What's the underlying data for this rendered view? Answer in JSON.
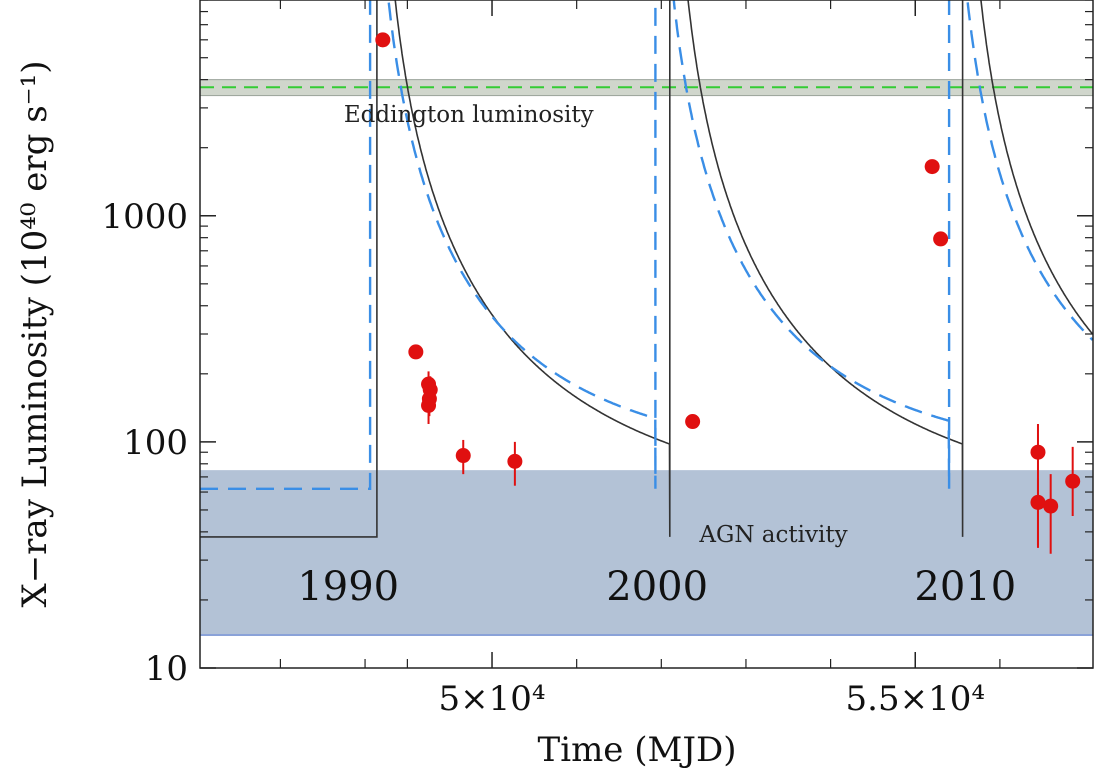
{
  "chart_data": {
    "type": "scatter",
    "xlabel": "Time (MJD)",
    "ylabel": "X−ray Luminosity (10⁴⁰ erg s⁻¹)",
    "x_scale": "linear",
    "y_scale": "log",
    "xlim": [
      46550,
      57100
    ],
    "ylim": [
      10,
      9000
    ],
    "x_major_ticks": [
      {
        "value": 50000,
        "label": "5×10⁴"
      },
      {
        "value": 55000,
        "label": "5.5×10⁴"
      }
    ],
    "x_minor_ticks": [
      47500,
      48500,
      49000,
      51000,
      52000,
      53000,
      54000,
      56000
    ],
    "y_major_ticks": [
      {
        "value": 10,
        "label": "10"
      },
      {
        "value": 100,
        "label": "100"
      },
      {
        "value": 1000,
        "label": "1000"
      }
    ],
    "grid": false,
    "bands": [
      {
        "name": "Eddington luminosity",
        "y_low": 3400,
        "y_high": 4000,
        "line": 3700,
        "label_x": 48250,
        "label_y": 2600
      },
      {
        "name": "AGN activity",
        "y_low": 14,
        "y_high": 75,
        "label_x": 52450,
        "label_y": 36
      }
    ],
    "year_labels": [
      {
        "text": "1990",
        "x": 47700,
        "y": 20
      },
      {
        "text": "2000",
        "x": 51350,
        "y": 20
      },
      {
        "text": "2010",
        "x": 54990,
        "y": 20
      }
    ],
    "points": [
      {
        "x": 48710,
        "y": 6000,
        "err_lo": 0,
        "err_hi": 0
      },
      {
        "x": 49100,
        "y": 250,
        "err_lo": 0,
        "err_hi": 0
      },
      {
        "x": 49250,
        "y": 180,
        "err_lo": 25,
        "err_hi": 25
      },
      {
        "x": 49270,
        "y": 170,
        "err_lo": 25,
        "err_hi": 25
      },
      {
        "x": 49260,
        "y": 155,
        "err_lo": 25,
        "err_hi": 25
      },
      {
        "x": 49250,
        "y": 145,
        "err_lo": 25,
        "err_hi": 25
      },
      {
        "x": 49660,
        "y": 87,
        "err_lo": 15,
        "err_hi": 15
      },
      {
        "x": 50270,
        "y": 82,
        "err_lo": 18,
        "err_hi": 18
      },
      {
        "x": 52370,
        "y": 123,
        "err_lo": 0,
        "err_hi": 0
      },
      {
        "x": 55200,
        "y": 1650,
        "err_lo": 0,
        "err_hi": 0
      },
      {
        "x": 55300,
        "y": 790,
        "err_lo": 0,
        "err_hi": 0
      },
      {
        "x": 56450,
        "y": 90,
        "err_lo": 55,
        "err_hi": 30
      },
      {
        "x": 56450,
        "y": 54,
        "err_lo": 20,
        "err_hi": 15
      },
      {
        "x": 56600,
        "y": 52,
        "err_lo": 20,
        "err_hi": 20
      },
      {
        "x": 56860,
        "y": 67,
        "err_lo": 20,
        "err_hi": 28
      }
    ],
    "series": [
      {
        "style": "solid",
        "color": "#333333",
        "baseline": 38,
        "start": 46550,
        "flares": [
          48640,
          52100,
          55560
        ]
      },
      {
        "style": "dashed",
        "color": "#3a8ee6",
        "baseline": 62,
        "start": 46550,
        "flares": [
          48560,
          51930,
          55400
        ]
      }
    ],
    "colors": {
      "points": "#e01010",
      "eddington_line": "#33cc33",
      "eddington_band": "#d0d6cc",
      "agn_band": "#b3c2d6",
      "agn_band_edge": "#8aa2d8"
    }
  }
}
